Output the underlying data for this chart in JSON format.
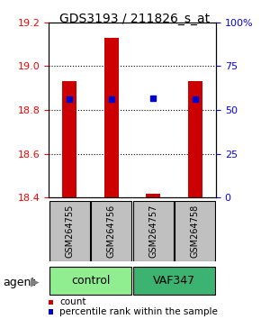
{
  "title": "GDS3193 / 211826_s_at",
  "samples": [
    "GSM264755",
    "GSM264756",
    "GSM264757",
    "GSM264758"
  ],
  "groups": [
    "control",
    "control",
    "VAF347",
    "VAF347"
  ],
  "group_labels": [
    "control",
    "VAF347"
  ],
  "group_colors": [
    "#90EE90",
    "#3CB371"
  ],
  "bar_bottom": 18.4,
  "bar_values": [
    18.93,
    19.13,
    18.42,
    18.93
  ],
  "percentile_values": [
    0.56,
    0.56,
    0.57,
    0.56
  ],
  "ylim": [
    18.4,
    19.2
  ],
  "y2lim": [
    0,
    100
  ],
  "yticks": [
    18.4,
    18.6,
    18.8,
    19.0,
    19.2
  ],
  "y2ticks": [
    0,
    25,
    50,
    75,
    100
  ],
  "y2tick_labels": [
    "0",
    "25",
    "50",
    "75",
    "100%"
  ],
  "bar_color": "#CC0000",
  "percentile_color": "#0000CC",
  "agent_label": "agent",
  "legend_count_label": "count",
  "legend_percentile_label": "percentile rank within the sample"
}
